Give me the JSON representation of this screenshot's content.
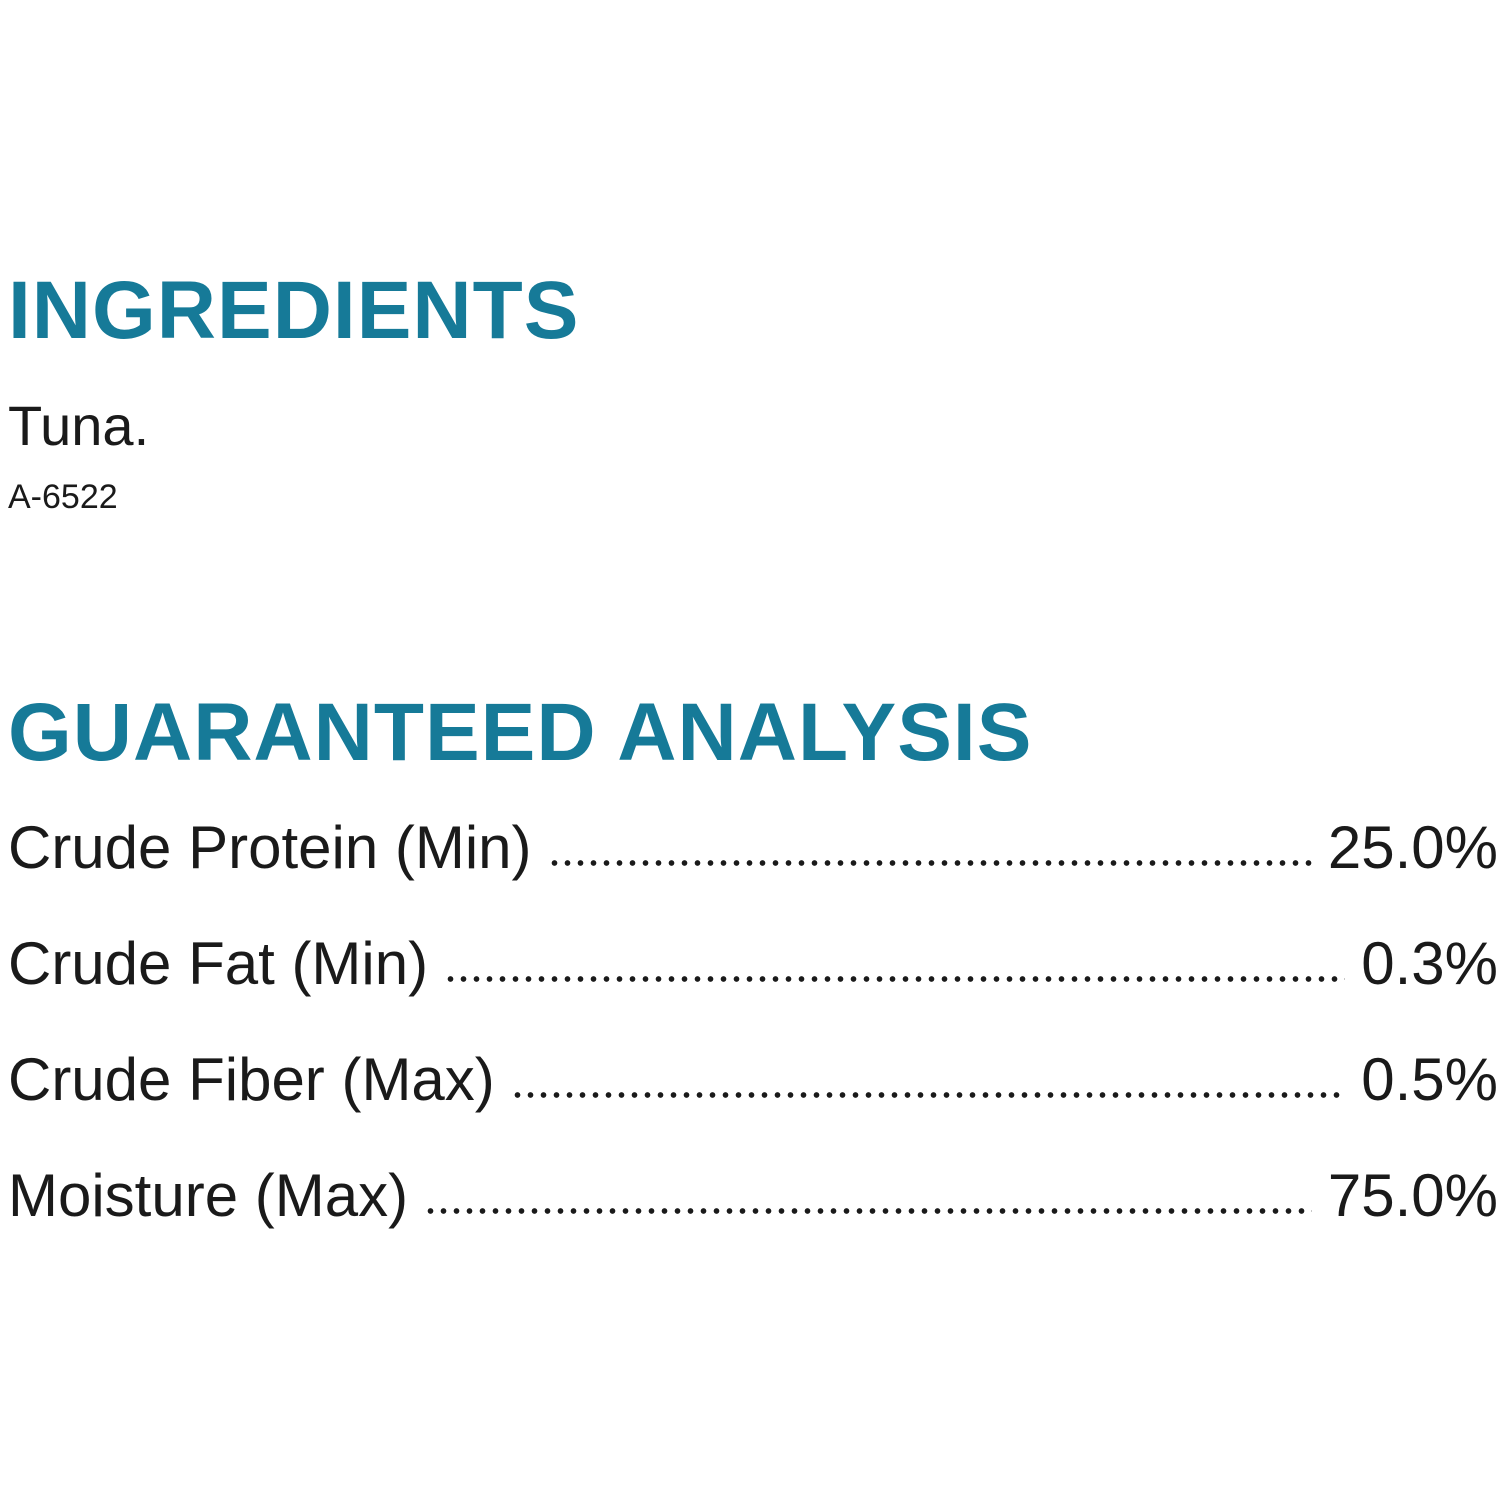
{
  "ingredients": {
    "heading": "INGREDIENTS",
    "text": "Tuna.",
    "code": "A-6522"
  },
  "analysis": {
    "heading": "GUARANTEED ANALYSIS",
    "rows": [
      {
        "label": "Crude Protein (Min)",
        "value": "25.0%"
      },
      {
        "label": "Crude Fat (Min)",
        "value": "0.3%"
      },
      {
        "label": "Crude Fiber (Max)",
        "value": "0.5%"
      },
      {
        "label": "Moisture (Max)",
        "value": "75.0%"
      }
    ]
  }
}
